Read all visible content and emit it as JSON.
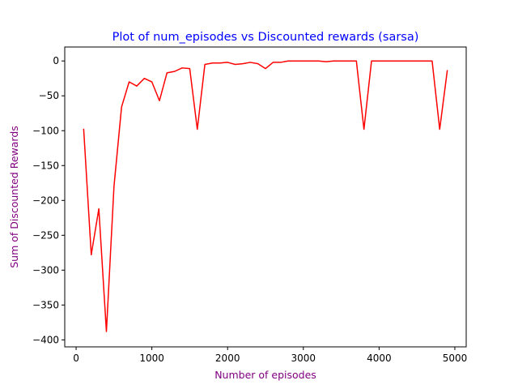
{
  "chart_data": {
    "type": "line",
    "title": "Plot of num_episodes vs Discounted rewards (sarsa)",
    "xlabel": "Number of episodes",
    "ylabel": "Sum of Discounted Rewards",
    "xlim": [
      -150,
      5150
    ],
    "ylim": [
      -410,
      20
    ],
    "xticks": [
      0,
      1000,
      2000,
      3000,
      4000,
      5000
    ],
    "yticks": [
      0,
      -50,
      -100,
      -150,
      -200,
      -250,
      -300,
      -350,
      -400
    ],
    "grid": false,
    "series": [
      {
        "color": "#ff0000",
        "x": [
          100,
          200,
          300,
          400,
          500,
          600,
          700,
          800,
          900,
          1000,
          1100,
          1200,
          1300,
          1400,
          1500,
          1600,
          1700,
          1800,
          1900,
          2000,
          2100,
          2200,
          2300,
          2400,
          2500,
          2600,
          2700,
          2800,
          2900,
          3000,
          3100,
          3200,
          3300,
          3400,
          3500,
          3600,
          3700,
          3800,
          3900,
          4000,
          4100,
          4200,
          4300,
          4400,
          4500,
          4600,
          4700,
          4800,
          4900
        ],
        "y": [
          -98,
          -278,
          -212,
          -388,
          -180,
          -66,
          -30,
          -36,
          -25,
          -30,
          -57,
          -17,
          -15,
          -10,
          -11,
          -98,
          -5,
          -3,
          -3,
          -2,
          -5,
          -4,
          -2,
          -4,
          -11,
          -2,
          -2,
          0,
          0,
          0,
          0,
          0,
          -1,
          0,
          0,
          0,
          0,
          -98,
          0,
          0,
          0,
          0,
          0,
          0,
          0,
          0,
          0,
          -98,
          -14
        ]
      }
    ]
  },
  "colors": {
    "title": "#0000ff",
    "axis_label": "#800080",
    "line": "#ff0000",
    "axes": "#000000"
  }
}
